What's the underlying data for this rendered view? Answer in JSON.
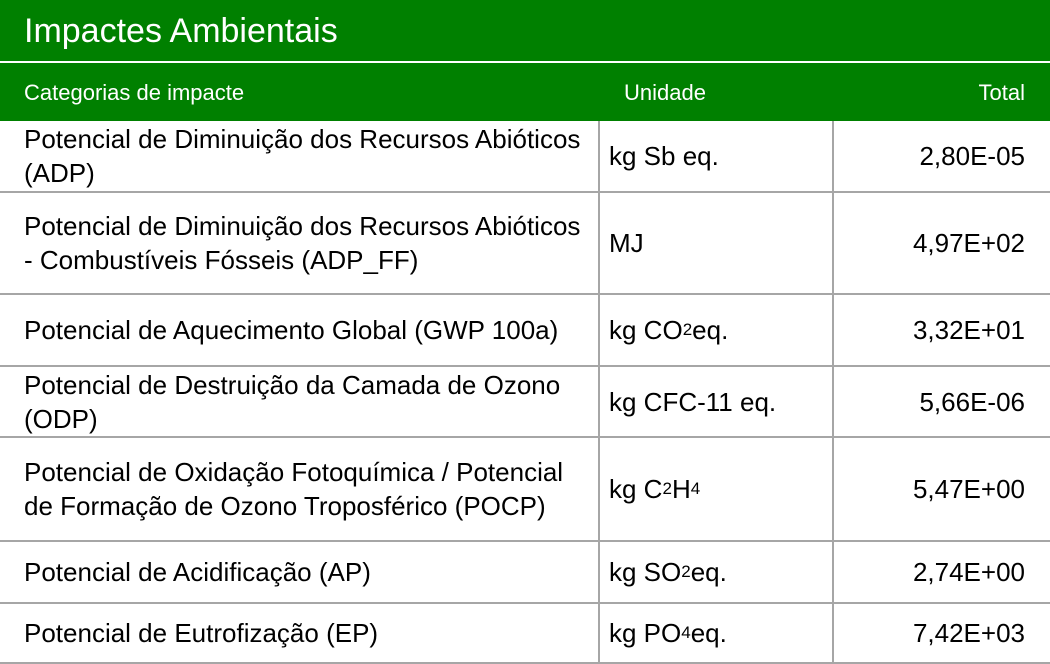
{
  "title": "Impactes Ambientais",
  "colors": {
    "header_green": "#008000",
    "grid_gray": "#a6a6a6",
    "header_text": "#ffffff"
  },
  "headers": {
    "category": "Categorias de impacte",
    "unit": "Unidade",
    "total": "Total"
  },
  "rows": [
    {
      "category": "Potencial de Diminuição dos Recursos Abióticos (ADP)",
      "unit": {
        "pre": "kg Sb eq.",
        "sub": "",
        "post": ""
      },
      "total": "2,80E-05"
    },
    {
      "category": "Potencial de Diminuição dos Recursos Abióticos  - Combustíveis Fósseis (ADP_FF)",
      "unit": {
        "pre": "MJ",
        "sub": "",
        "post": ""
      },
      "total": "4,97E+02"
    },
    {
      "category": "Potencial de Aquecimento Global (GWP 100a)",
      "unit": {
        "pre": "kg CO",
        "sub": "2",
        "post": " eq."
      },
      "total": "3,32E+01"
    },
    {
      "category": "Potencial de Destruição da Camada de Ozono (ODP)",
      "unit": {
        "pre": "kg CFC-11 eq.",
        "sub": "",
        "post": ""
      },
      "total": "5,66E-06"
    },
    {
      "category": "Potencial de Oxidação Fotoquímica / Potencial de Formação de Ozono Troposférico (POCP)",
      "unit": {
        "pre": "kg C",
        "sub": "2",
        "post": "H",
        "sub2": "4"
      },
      "total": "5,47E+00"
    },
    {
      "category": "Potencial de Acidificação (AP)",
      "unit": {
        "pre": "kg SO",
        "sub": "2",
        "post": " eq."
      },
      "total": "2,74E+00"
    },
    {
      "category": "Potencial de Eutrofização (EP)",
      "unit": {
        "pre": "kg PO",
        "sub": "4",
        "post": " eq."
      },
      "total": "7,42E+03"
    }
  ]
}
